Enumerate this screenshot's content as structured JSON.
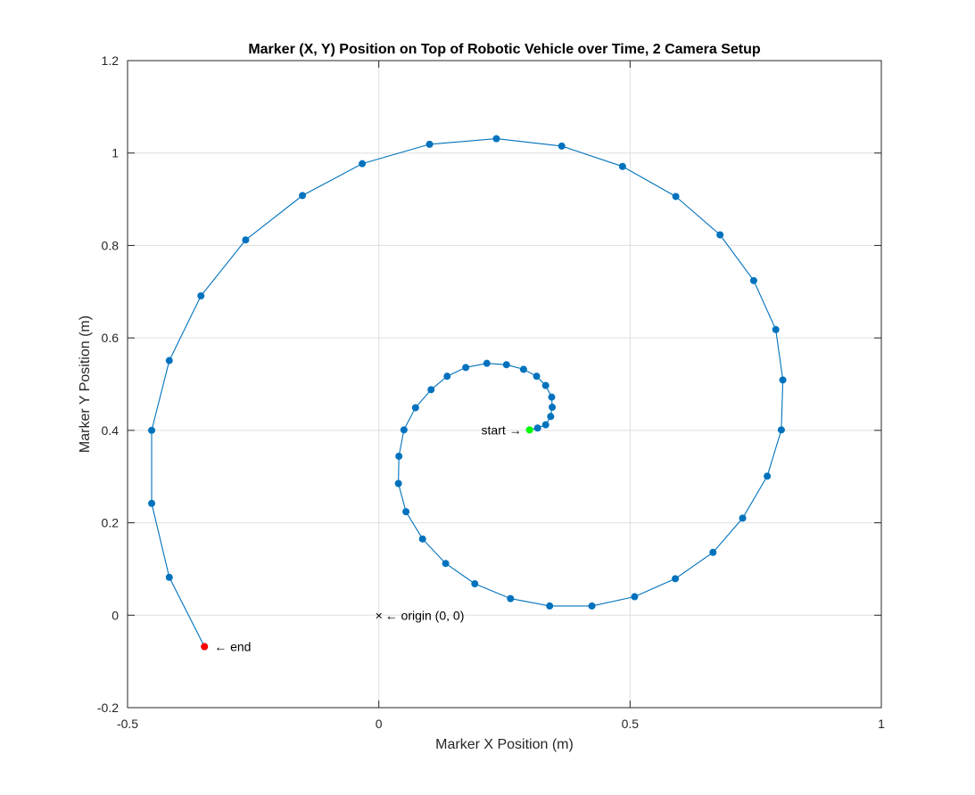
{
  "chart_data": {
    "type": "line",
    "title": "Marker (X, Y) Position on Top of Robotic Vehicle over Time, 2 Camera Setup",
    "xlabel": "Marker X Position (m)",
    "ylabel": "Marker Y Position (m)",
    "xlim": [
      -0.5,
      1
    ],
    "ylim": [
      -0.2,
      1.2
    ],
    "xticks": [
      -0.5,
      0,
      0.5,
      1
    ],
    "xtick_labels": [
      "-0.5",
      "0",
      "0.5",
      "1"
    ],
    "yticks": [
      -0.2,
      0,
      0.2,
      0.4,
      0.6,
      0.8,
      1,
      1.2
    ],
    "ytick_labels": [
      "-0.2",
      "0",
      "0.2",
      "0.4",
      "0.6",
      "0.8",
      "1",
      "1.2"
    ],
    "grid": true,
    "colors": {
      "series": "#0072BD",
      "start": "#00FF00",
      "end": "#FF0000",
      "grid": "#dfdfdf",
      "axis": "#262626"
    },
    "series": [
      {
        "x": [
          0.3,
          0.316,
          0.332,
          0.342,
          0.345,
          0.344,
          0.332,
          0.314,
          0.288,
          0.254,
          0.215,
          0.173,
          0.136,
          0.104,
          0.073,
          0.05,
          0.04,
          0.039,
          0.054,
          0.087,
          0.133,
          0.191,
          0.262,
          0.34,
          0.424,
          0.509,
          0.59,
          0.665,
          0.724,
          0.773,
          0.801,
          0.804,
          0.79,
          0.746,
          0.679,
          0.591,
          0.485,
          0.364,
          0.234,
          0.101,
          -0.033,
          -0.152,
          -0.265,
          -0.354,
          -0.417,
          -0.452,
          -0.452,
          -0.417,
          -0.347
        ],
        "y": [
          0.401,
          0.405,
          0.412,
          0.43,
          0.45,
          0.472,
          0.497,
          0.517,
          0.532,
          0.542,
          0.545,
          0.536,
          0.517,
          0.488,
          0.449,
          0.401,
          0.344,
          0.285,
          0.224,
          0.165,
          0.112,
          0.068,
          0.036,
          0.02,
          0.02,
          0.04,
          0.079,
          0.136,
          0.21,
          0.301,
          0.401,
          0.509,
          0.618,
          0.724,
          0.823,
          0.906,
          0.971,
          1.015,
          1.031,
          1.019,
          0.977,
          0.908,
          0.812,
          0.691,
          0.551,
          0.4,
          0.242,
          0.082,
          -0.068
        ]
      }
    ],
    "markers": {
      "start": {
        "x": 0.3,
        "y": 0.401
      },
      "end": {
        "x": -0.347,
        "y": -0.068
      },
      "origin": {
        "x": 0,
        "y": 0
      }
    },
    "annotations": {
      "start": "start →",
      "end": "← end",
      "origin": "← origin (0, 0)",
      "origin_symbol": "×"
    }
  }
}
